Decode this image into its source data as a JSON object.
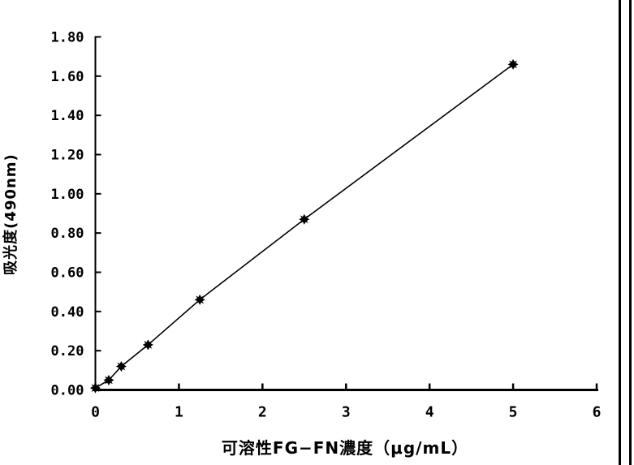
{
  "page": {
    "background": "#ffffff",
    "border_color": "#000000"
  },
  "chart_data": {
    "type": "line",
    "title": "",
    "xlabel": "可溶性FG−FN濃度（μg/mL）",
    "ylabel": "吸光度(490nm)",
    "xlim": [
      0,
      6
    ],
    "ylim": [
      0,
      1.8
    ],
    "x_tick_labels": [
      "0",
      "1",
      "2",
      "3",
      "4",
      "5",
      "6"
    ],
    "y_tick_labels": [
      "0.00",
      "0.20",
      "0.40",
      "0.60",
      "0.80",
      "1.00",
      "1.20",
      "1.40",
      "1.60",
      "1.80"
    ],
    "grid": false,
    "legend": "none",
    "marker": "filled-diamond",
    "line_color": "#000000",
    "marker_color": "#000000",
    "series": [
      {
        "name": "soluble FG-FN standard curve",
        "x": [
          0,
          0.16,
          0.31,
          0.63,
          1.25,
          2.5,
          5
        ],
        "y": [
          0.01,
          0.05,
          0.12,
          0.23,
          0.46,
          0.87,
          1.66
        ]
      }
    ]
  }
}
